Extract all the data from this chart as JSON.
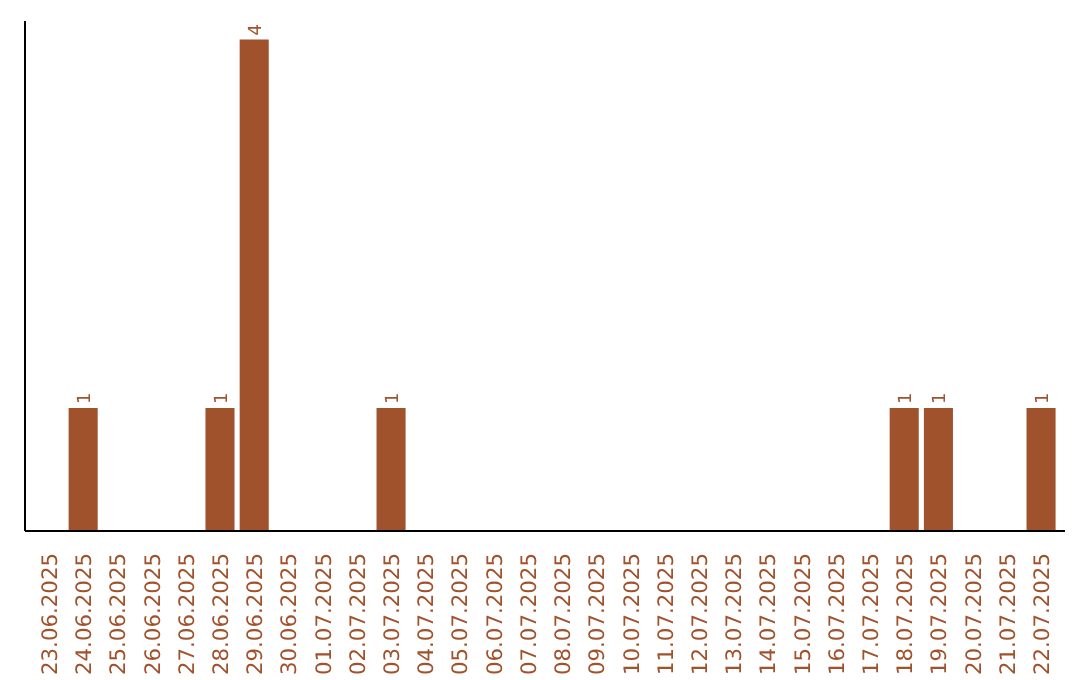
{
  "chart_data": {
    "type": "bar",
    "categories": [
      "23.06.2025",
      "24.06.2025",
      "25.06.2025",
      "26.06.2025",
      "27.06.2025",
      "28.06.2025",
      "29.06.2025",
      "30.06.2025",
      "01.07.2025",
      "02.07.2025",
      "03.07.2025",
      "04.07.2025",
      "05.07.2025",
      "06.07.2025",
      "07.07.2025",
      "08.07.2025",
      "09.07.2025",
      "10.07.2025",
      "11.07.2025",
      "12.07.2025",
      "13.07.2025",
      "14.07.2025",
      "15.07.2025",
      "16.07.2025",
      "17.07.2025",
      "18.07.2025",
      "19.07.2025",
      "20.07.2025",
      "21.07.2025",
      "22.07.2025"
    ],
    "values": [
      0,
      1,
      0,
      0,
      0,
      1,
      4,
      0,
      0,
      0,
      1,
      0,
      0,
      0,
      0,
      0,
      0,
      0,
      0,
      0,
      0,
      0,
      0,
      0,
      0,
      1,
      1,
      0,
      0,
      1
    ],
    "value_labels": [
      null,
      "1",
      null,
      null,
      null,
      "1",
      "4",
      null,
      null,
      null,
      "1",
      null,
      null,
      null,
      null,
      null,
      null,
      null,
      null,
      null,
      null,
      null,
      null,
      null,
      null,
      "1",
      "1",
      null,
      null,
      "1"
    ],
    "color": "#a0522d",
    "ylim": [
      0,
      4.15
    ],
    "grid": false,
    "tick_labels": "x"
  }
}
